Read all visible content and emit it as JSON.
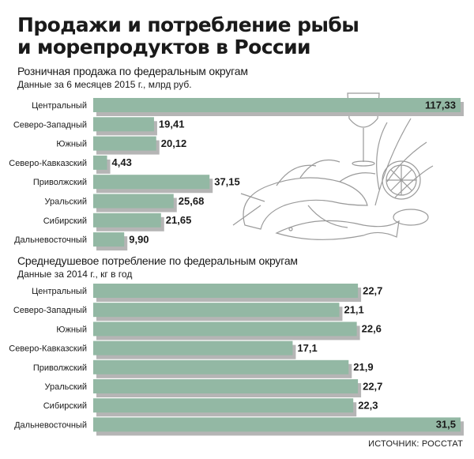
{
  "header": {
    "title_line1": "Продажи и потребление рыбы",
    "title_line2": "и морепродуктов в России"
  },
  "source": "ИСТОЧНИК: РОССТАТ",
  "colors": {
    "bar": "#93b8a4",
    "bar_shadow": "#b5b5b5",
    "text": "#1a1a1a"
  },
  "illustration": "fish-seafood-still-life-illustration",
  "chart_data": [
    {
      "type": "bar",
      "orientation": "horizontal",
      "title": "Розничная продажа по федеральным округам",
      "subtitle": "Данные за 6 месяцев 2015 г., млрд руб.",
      "categories": [
        "Центральный",
        "Северо-Западный",
        "Южный",
        "Северо-Кавказский",
        "Приволжский",
        "Уральский",
        "Сибирский",
        "Дальневосточный"
      ],
      "values": [
        117.33,
        19.41,
        20.12,
        4.43,
        37.15,
        25.68,
        21.65,
        9.9
      ],
      "value_labels": [
        "117,33",
        "19,41",
        "20,12",
        "4,43",
        "37,15",
        "25,68",
        "21,65",
        "9,90"
      ],
      "xlim": [
        0,
        117.33
      ]
    },
    {
      "type": "bar",
      "orientation": "horizontal",
      "title": "Среднедушевое потребление по федеральным округам",
      "subtitle": "Данные за 2014 г., кг в год",
      "categories": [
        "Центральный",
        "Северо-Западный",
        "Южный",
        "Северо-Кавказский",
        "Приволжский",
        "Уральский",
        "Сибирский",
        "Дальневосточный"
      ],
      "values": [
        22.7,
        21.1,
        22.6,
        17.1,
        21.9,
        22.7,
        22.3,
        31.5
      ],
      "value_labels": [
        "22,7",
        "21,1",
        "22,6",
        "17,1",
        "21,9",
        "22,7",
        "22,3",
        "31,5"
      ],
      "xlim": [
        0,
        31.5
      ]
    }
  ]
}
